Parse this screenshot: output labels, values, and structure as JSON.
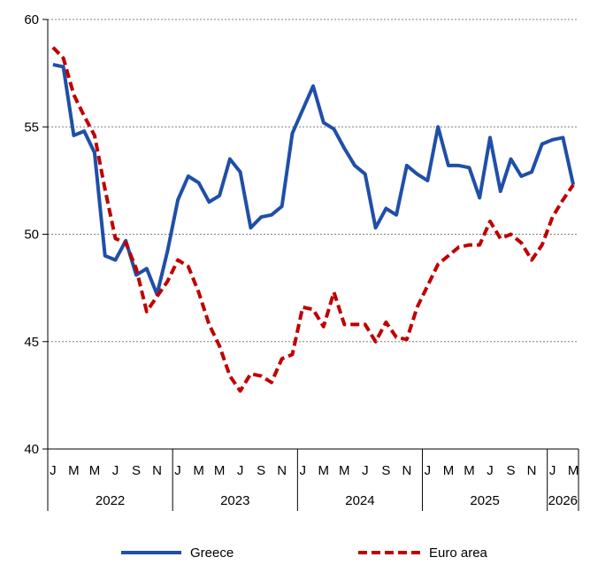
{
  "chart_data": {
    "type": "line",
    "ylim": [
      40,
      60
    ],
    "yticks": [
      40,
      45,
      50,
      55,
      60
    ],
    "grid": "horizontal dashed",
    "legend_position": "bottom",
    "x": [
      "2022-01",
      "2022-02",
      "2022-03",
      "2022-04",
      "2022-05",
      "2022-06",
      "2022-07",
      "2022-08",
      "2022-09",
      "2022-10",
      "2022-11",
      "2022-12",
      "2023-01",
      "2023-02",
      "2023-03",
      "2023-04",
      "2023-05",
      "2023-06",
      "2023-07",
      "2023-08",
      "2023-09",
      "2023-10",
      "2023-11",
      "2023-12",
      "2024-01",
      "2024-02",
      "2024-03",
      "2024-04",
      "2024-05",
      "2024-06",
      "2024-07",
      "2024-08",
      "2024-09",
      "2024-10",
      "2024-11",
      "2024-12",
      "2025-01",
      "2025-02",
      "2025-03",
      "2025-04",
      "2025-05",
      "2025-06",
      "2025-07",
      "2025-08",
      "2025-09",
      "2025-10",
      "2025-11",
      "2025-12",
      "2026-01",
      "2026-02",
      "2026-03"
    ],
    "month_labels": [
      "J",
      "M",
      "M",
      "J",
      "S",
      "N",
      "J",
      "M",
      "M",
      "J",
      "S",
      "N",
      "J",
      "M",
      "M",
      "J",
      "S",
      "N",
      "J",
      "M",
      "M",
      "J",
      "S",
      "N",
      "J",
      "M"
    ],
    "year_labels": [
      "2022",
      "2023",
      "2024",
      "2025",
      "2026"
    ],
    "series": [
      {
        "name": "Greece",
        "color": "#1f4fa8",
        "style": "solid",
        "values": [
          57.9,
          57.8,
          54.6,
          54.8,
          53.8,
          49.0,
          48.8,
          49.7,
          48.1,
          48.4,
          47.2,
          49.2,
          51.6,
          52.7,
          52.4,
          51.5,
          51.8,
          53.5,
          52.9,
          50.3,
          50.8,
          50.9,
          51.3,
          54.7,
          55.8,
          56.9,
          55.2,
          54.9,
          54.0,
          53.2,
          52.8,
          50.3,
          51.2,
          50.9,
          53.2,
          52.8,
          52.5,
          55.0,
          53.2,
          53.2,
          53.1,
          51.7,
          54.5,
          52.0,
          53.5,
          52.7,
          52.9,
          54.2,
          54.4,
          54.5,
          52.3
        ]
      },
      {
        "name": "Euro area",
        "color": "#c00000",
        "style": "dashed",
        "values": [
          58.7,
          58.2,
          56.5,
          55.5,
          54.6,
          52.1,
          49.8,
          49.6,
          48.4,
          46.4,
          47.1,
          47.8,
          48.8,
          48.5,
          47.3,
          45.8,
          44.8,
          43.4,
          42.7,
          43.5,
          43.4,
          43.1,
          44.2,
          44.4,
          46.6,
          46.5,
          45.7,
          47.3,
          45.8,
          45.8,
          45.8,
          45.0,
          45.9,
          45.2,
          45.1,
          46.6,
          47.6,
          48.6,
          49.0,
          49.4,
          49.5,
          49.5,
          50.6,
          49.8,
          50.0,
          49.6,
          48.8,
          49.5,
          50.8,
          51.6,
          52.3
        ]
      }
    ]
  }
}
